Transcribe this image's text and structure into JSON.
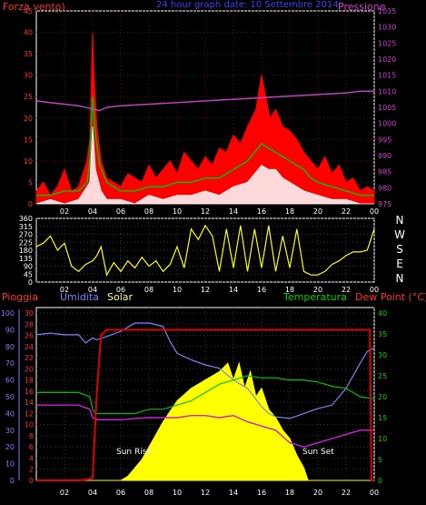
{
  "panel_top": {
    "title_left": "Forza vento)",
    "title_center": "24 hour graph date: 10 Settembre 2014",
    "title_right": "Pressione"
  },
  "panel_bottom": {
    "label_rain": "Pioggia",
    "label_humidity": "Umidita",
    "label_solar": "Solar",
    "label_temperature": "Temperatura",
    "label_dewpoint": "Dew Point (°C)",
    "sunrise_label": "Sun Rise",
    "sunset_label": "Sun Set"
  },
  "colors": {
    "wind_gust": "#ff0000",
    "wind_avg": "#00c000",
    "wind_min": "#ffffff",
    "pressure": "#c040c0",
    "direction": "#ffff00",
    "rain": "#e00000",
    "humidity": "#8080ff",
    "solar": "#ffff00",
    "temperature": "#00c000",
    "dewpoint": "#d020d0",
    "axis_rain": "#ff3030",
    "axis_humidity": "#8080ff",
    "axis_temp": "#00d000",
    "axis_pressure": "#d040d0",
    "title_blue": "#4040ff"
  },
  "chart_data": [
    {
      "type": "line",
      "name_key": "wind_pressure",
      "xticks": [
        "02",
        "04",
        "06",
        "08",
        "10",
        "12",
        "14",
        "16",
        "18",
        "20",
        "22",
        "00"
      ],
      "xlim": [
        0,
        24
      ],
      "y_left_ticks": [
        0,
        5,
        10,
        15,
        20,
        25,
        30,
        35,
        40,
        45
      ],
      "y_left_lim": [
        0,
        45
      ],
      "y_right_ticks": [
        975,
        980,
        985,
        990,
        995,
        1000,
        1005,
        1010,
        1015,
        1020,
        1025,
        1030,
        1035
      ],
      "y_right_lim": [
        975,
        1035
      ],
      "series": [
        {
          "key": "gust",
          "x": [
            0,
            0.5,
            1,
            1.5,
            2,
            2.5,
            3,
            3.3,
            3.6,
            3.8,
            4,
            4.1,
            4.3,
            4.6,
            5,
            5.5,
            6,
            6.5,
            7,
            7.5,
            8,
            8.5,
            9,
            9.5,
            10,
            10.5,
            11,
            11.5,
            12,
            12.5,
            13,
            13.5,
            14,
            14.5,
            15,
            15.3,
            15.6,
            15.8,
            16,
            16.3,
            16.6,
            17,
            17.5,
            18,
            18.5,
            19,
            19.5,
            20,
            20.5,
            21,
            21.5,
            22,
            22.5,
            23,
            23.5,
            24
          ],
          "y": [
            3,
            5,
            2,
            4,
            8,
            3,
            4,
            7,
            10,
            15,
            40,
            30,
            18,
            10,
            6,
            5,
            4,
            7,
            6,
            5,
            9,
            6,
            8,
            10,
            7,
            12,
            10,
            8,
            11,
            9,
            13,
            12,
            16,
            14,
            18,
            20,
            22,
            26,
            30,
            25,
            20,
            22,
            18,
            17,
            15,
            12,
            10,
            8,
            11,
            7,
            9,
            5,
            6,
            3,
            4,
            3
          ]
        },
        {
          "key": "avg",
          "x": [
            0,
            1,
            2,
            3,
            3.6,
            3.8,
            4,
            4.2,
            4.5,
            5,
            6,
            7,
            8,
            9,
            10,
            11,
            12,
            13,
            14,
            14.5,
            15,
            15.5,
            16,
            16.5,
            17,
            17.5,
            18,
            18.5,
            19,
            19.5,
            20,
            21,
            22,
            23,
            24
          ],
          "y": [
            2,
            2,
            3,
            3,
            5,
            10,
            25,
            16,
            9,
            5,
            3,
            3,
            4,
            4,
            5,
            5,
            6,
            6,
            8,
            9,
            10,
            12,
            14,
            13,
            12,
            11,
            10,
            9,
            8,
            6,
            5,
            4,
            3,
            2,
            2
          ]
        },
        {
          "key": "min",
          "x": [
            0,
            1,
            2,
            3,
            3.8,
            4,
            4.2,
            4.6,
            5,
            6,
            7,
            8,
            9,
            10,
            11,
            12,
            13,
            14,
            15,
            15.5,
            16,
            16.5,
            17,
            17.5,
            18,
            19,
            20,
            21,
            22,
            23,
            24
          ],
          "y": [
            0,
            1,
            0,
            1,
            5,
            18,
            8,
            3,
            1,
            1,
            0,
            2,
            1,
            2,
            2,
            3,
            2,
            4,
            5,
            7,
            9,
            8,
            8,
            6,
            5,
            3,
            2,
            1,
            1,
            0,
            0
          ]
        },
        {
          "key": "pressure",
          "x": [
            0,
            1,
            2,
            3,
            4,
            4.5,
            5,
            6,
            8,
            10,
            12,
            14,
            16,
            18,
            20,
            22,
            23,
            24
          ],
          "y": [
            1007,
            1006.5,
            1006,
            1005.5,
            1004.5,
            1004,
            1005,
            1005.5,
            1006,
            1006.5,
            1007,
            1007.5,
            1008,
            1008.5,
            1009,
            1009.5,
            1010,
            1010
          ]
        }
      ]
    },
    {
      "type": "line",
      "name_key": "wind_direction",
      "xticks": [
        "02",
        "04",
        "06",
        "08",
        "10",
        "12",
        "14",
        "16",
        "18",
        "20",
        "22",
        "00"
      ],
      "xlim": [
        0,
        24
      ],
      "y_left_ticks": [
        0,
        45,
        90,
        135,
        180,
        225,
        270,
        315,
        360
      ],
      "y_left_lim": [
        0,
        360
      ],
      "y_right_ticks": [
        "N",
        "W",
        "S",
        "E",
        "N"
      ],
      "series": [
        {
          "key": "direction",
          "x": [
            0,
            0.5,
            1,
            1.5,
            2,
            2.5,
            3,
            3.5,
            4,
            4.3,
            4.6,
            5,
            5.5,
            6,
            6.5,
            7,
            7.5,
            8,
            8.5,
            9,
            9.5,
            10,
            10.5,
            11,
            11.5,
            12,
            12.5,
            13,
            13.5,
            14,
            14.5,
            15,
            15.5,
            16,
            16.5,
            17,
            17.5,
            18,
            18.5,
            19,
            19.5,
            20,
            20.5,
            21,
            21.5,
            22,
            22.5,
            23,
            23.5,
            24
          ],
          "y": [
            200,
            220,
            260,
            180,
            220,
            90,
            60,
            100,
            120,
            150,
            200,
            40,
            110,
            60,
            120,
            80,
            140,
            90,
            120,
            60,
            100,
            200,
            80,
            300,
            240,
            320,
            260,
            60,
            300,
            80,
            320,
            60,
            300,
            80,
            320,
            60,
            260,
            80,
            300,
            60,
            40,
            40,
            60,
            100,
            120,
            150,
            170,
            170,
            180,
            300
          ]
        }
      ]
    },
    {
      "type": "line",
      "name_key": "rain_humidity_temp",
      "xticks": [
        "02",
        "04",
        "06",
        "08",
        "10",
        "12",
        "14",
        "16",
        "18",
        "20",
        "22",
        "00"
      ],
      "xlim": [
        0,
        24
      ],
      "y_rain_ticks": [
        0,
        2,
        4,
        6,
        8,
        10,
        12,
        14,
        16,
        18,
        20,
        22,
        24,
        26,
        28,
        30
      ],
      "y_rain_lim": [
        0,
        30
      ],
      "y_humidity_ticks": [
        0,
        10,
        20,
        30,
        40,
        50,
        60,
        70,
        80,
        90,
        100
      ],
      "y_humidity_lim": [
        0,
        100
      ],
      "y_temp_ticks": [
        0,
        5,
        10,
        15,
        20,
        25,
        30,
        35,
        40
      ],
      "y_temp_lim": [
        0,
        40
      ],
      "series": [
        {
          "key": "rain",
          "x": [
            0,
            3,
            3.7,
            4,
            4.3,
            4.6,
            5,
            6,
            8,
            10,
            12,
            14,
            16,
            18,
            20,
            22,
            23.7,
            23.8,
            24
          ],
          "y": [
            0,
            0,
            0.2,
            0.5,
            16,
            26,
            27,
            27,
            27,
            27,
            27,
            27,
            27,
            27,
            27,
            27,
            27,
            0,
            0
          ]
        },
        {
          "key": "humidity",
          "x": [
            0,
            1,
            2,
            3,
            3.5,
            3.8,
            4,
            4.3,
            5,
            6,
            7,
            8,
            9,
            9.5,
            10,
            11,
            12,
            13,
            14,
            15,
            16,
            16.5,
            17,
            18,
            19,
            20,
            21,
            22,
            23,
            23.5,
            24
          ],
          "y": [
            87,
            88,
            87,
            87,
            82,
            84,
            85,
            84,
            86,
            89,
            94,
            94,
            92,
            83,
            76,
            72,
            69,
            67,
            60,
            55,
            44,
            40,
            38,
            37,
            40,
            43,
            45,
            55,
            70,
            77,
            79
          ]
        },
        {
          "key": "solar",
          "x": [
            0,
            6,
            6.5,
            7,
            7.5,
            8,
            9,
            10,
            11,
            11.5,
            12,
            12.5,
            13,
            13.3,
            13.6,
            14,
            14.4,
            14.8,
            15.2,
            15.6,
            16,
            16.5,
            17,
            17.5,
            18,
            18.5,
            19,
            19.3,
            24
          ],
          "y": [
            0,
            0,
            1,
            3,
            5,
            8,
            14,
            19,
            22,
            23,
            24,
            25,
            26,
            27,
            28,
            24,
            28,
            22,
            26,
            20,
            22,
            17,
            15,
            12,
            10,
            6,
            3,
            0,
            0
          ]
        },
        {
          "key": "temperature",
          "x": [
            0,
            1,
            2,
            3,
            3.8,
            4,
            4.2,
            5,
            6,
            7,
            8,
            9,
            10,
            11,
            12,
            13,
            14,
            15,
            16,
            17,
            18,
            19,
            20,
            21,
            22,
            22.5,
            23,
            24
          ],
          "y": [
            21,
            21,
            21,
            21,
            20,
            17,
            16,
            16,
            16,
            16,
            17,
            17,
            18,
            19,
            21,
            23,
            24,
            25,
            24.5,
            24.5,
            24,
            24,
            23.5,
            22.5,
            22,
            21,
            20,
            19.5
          ]
        },
        {
          "key": "dewpoint",
          "x": [
            0,
            1,
            2,
            3,
            3.8,
            4,
            4.3,
            5,
            6,
            7,
            8,
            9,
            10,
            11,
            12,
            13,
            14,
            15,
            16,
            17,
            18,
            19,
            20,
            21,
            22,
            23,
            24
          ],
          "y": [
            18,
            18,
            18,
            18,
            17,
            15,
            14.5,
            14.5,
            14.5,
            14.8,
            15,
            15,
            15,
            15.5,
            15.5,
            15,
            15.5,
            14,
            13,
            12,
            9,
            8,
            9,
            10,
            11,
            12,
            12
          ]
        }
      ]
    }
  ]
}
